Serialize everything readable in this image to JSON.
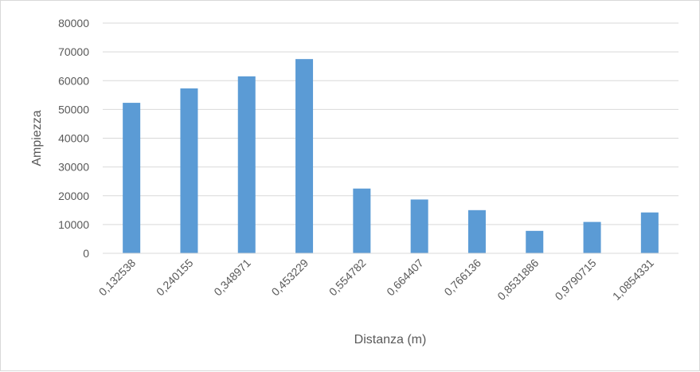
{
  "chart_data": {
    "type": "bar",
    "title": "",
    "xlabel": "Distanza (m)",
    "ylabel": "Ampiezza",
    "categories": [
      "0,132538",
      "0,240155",
      "0,348971",
      "0,453229",
      "0,554782",
      "0,664407",
      "0,766136",
      "0,8531886",
      "0,9790715",
      "1,0854331"
    ],
    "values": [
      52300,
      57300,
      61500,
      67500,
      22500,
      18700,
      15000,
      7800,
      10900,
      14200
    ],
    "ylim": [
      0,
      80000
    ],
    "yticks": [
      "0",
      "10000",
      "20000",
      "30000",
      "40000",
      "50000",
      "60000",
      "70000",
      "80000"
    ],
    "grid": true,
    "legend": "none",
    "bar_color": "#5b9bd5",
    "grid_color": "#d9d9d9"
  }
}
